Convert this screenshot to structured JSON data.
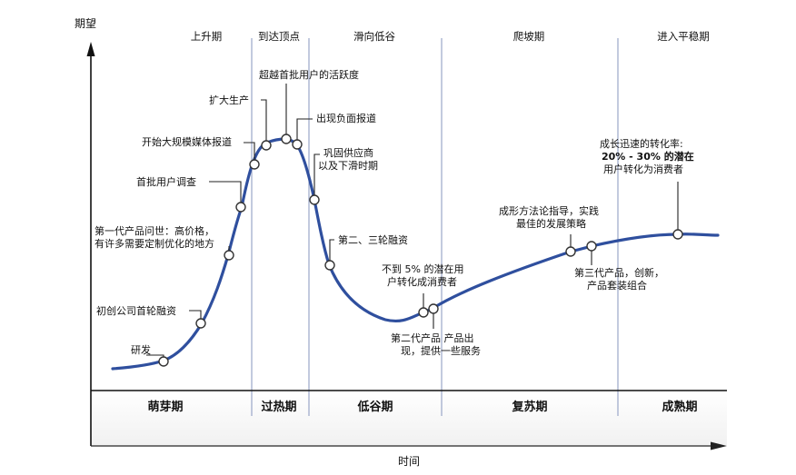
{
  "axes": {
    "y_label": "期望",
    "x_label": "时间"
  },
  "phases": [
    "上升期",
    "到达顶点",
    "滑向低谷",
    "爬坡期",
    "进入平稳期"
  ],
  "stages": [
    "萌芽期",
    "过热期",
    "低谷期",
    "复苏期",
    "成熟期"
  ],
  "annotations": {
    "research": [
      "研发"
    ],
    "startup_funding": [
      "初创公司首轮融资"
    ],
    "first_gen": [
      "第一代产品问世：高价格，",
      "有许多需要定制优化的地方"
    ],
    "first_survey": [
      "首批用户调查"
    ],
    "media": [
      "开始大规模媒体报道"
    ],
    "expand": [
      "扩大生产"
    ],
    "activity": [
      "超越首批用户的活跃度"
    ],
    "negative": [
      "出现负面报道"
    ],
    "consolidate": [
      "巩固供应商",
      "以及下滑时期"
    ],
    "funding23": [
      "第二、三轮融资"
    ],
    "conv5": [
      "不到 5% 的潜在用",
      "户转化成消费者"
    ],
    "gen2": [
      "第二代产品 产品出",
      "现，提供一些服务"
    ],
    "methodology": [
      "成形方法论指导，实践",
      "最佳的发展策略"
    ],
    "gen3": [
      "第三代产品，创新，",
      "产品套装组合"
    ],
    "conv2030": [
      "成长迅速的转化率:",
      "20% - 30% 的潜在",
      "用户转化为消费者"
    ]
  }
}
